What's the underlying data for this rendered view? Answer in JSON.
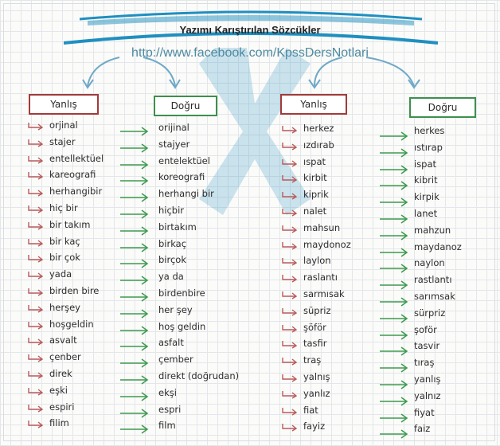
{
  "title": "Yazımı Karıştırılan Sözcükler",
  "url": "http://www.facebook.com/KpssDersNotlari",
  "headers": {
    "wrong": "Yanlış",
    "right": "Doğru"
  },
  "left_wrong": [
    "orjinal",
    "stajer",
    "entellektüel",
    "kareografi",
    "herhangibir",
    "hiç bir",
    "bir takım",
    "bir kaç",
    "bir çok",
    "yada",
    "birden bire",
    "herşey",
    "hoşgeldin",
    "asvalt",
    "çenber",
    "direk",
    "eşki",
    "espiri",
    "filim"
  ],
  "left_right": [
    "orijinal",
    "stajyer",
    "entelektüel",
    "koreografi",
    "herhangi bir",
    "hiçbir",
    "birtakım",
    "birkaç",
    "birçok",
    "ya da",
    "birdenbire",
    "her şey",
    "hoş geldin",
    "asfalt",
    "çember",
    "direkt (doğrudan)",
    "ekşi",
    "espri",
    "film"
  ],
  "right_wrong": [
    "herkez",
    "ızdırab",
    "ıspat",
    "kirbit",
    "kiprik",
    "nalet",
    "mahsun",
    "maydonoz",
    "laylon",
    "raslantı",
    "sarmısak",
    "süpriz",
    "şöför",
    "tasfir",
    "traş",
    "yalnış",
    "yanlız",
    "fiat",
    "fayiz"
  ],
  "right_right": [
    "herkes",
    "ıstırap",
    "ispat",
    "kibrit",
    "kirpik",
    "lanet",
    "mahzun",
    "maydanoz",
    "naylon",
    "rastlantı",
    "sarımsak",
    "sürpriz",
    "şoför",
    "tasvir",
    "tıraş",
    "yanlış",
    "yalnız",
    "fiyat",
    "faiz"
  ],
  "colors": {
    "wrong_border": "#a23a3a",
    "right_border": "#3d8f4d",
    "arrow": "#3d9a4e",
    "hook": "#b85a5a",
    "banner": "#1f8fc0"
  }
}
